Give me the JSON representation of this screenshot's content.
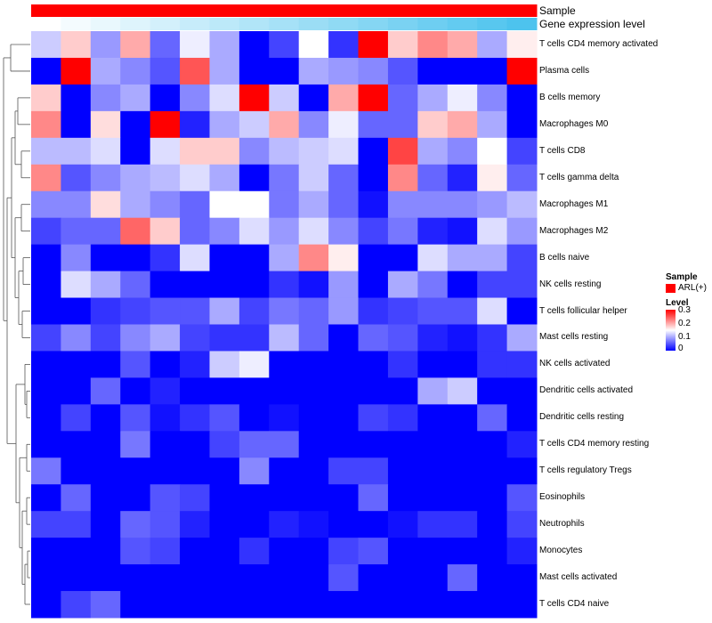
{
  "chart_data": {
    "type": "heatmap",
    "annotations": [
      {
        "name": "Sample",
        "colors": [
          "#ff0000"
        ]
      },
      {
        "name": "Gene expression level",
        "gradient": [
          "#ffffff",
          "#4dc3ee"
        ]
      }
    ],
    "rows": [
      "T cells CD4 memory activated",
      "Plasma cells",
      "B cells memory",
      "Macrophages M0",
      "T cells CD8",
      "T cells gamma delta",
      "Macrophages M1",
      "Macrophages M2",
      "B cells naive",
      "NK cells resting",
      "T cells follicular helper",
      "Mast cells resting",
      "NK cells activated",
      "Dendritic cells activated",
      "Dendritic cells resting",
      "T cells CD4 memory resting",
      "T cells regulatory  Tregs",
      "Eosinophils",
      "Neutrophils",
      "Monocytes",
      "Mast cells activated",
      "T cells CD4 naive"
    ],
    "values": [
      [
        0.12,
        0.18,
        0.09,
        0.2,
        0.06,
        0.14,
        0.1,
        0.0,
        0.04,
        0.15,
        0.03,
        0.3,
        0.18,
        0.22,
        0.2,
        0.1,
        0.16
      ],
      [
        0.0,
        0.3,
        0.1,
        0.08,
        0.05,
        0.25,
        0.1,
        0.0,
        0.0,
        0.1,
        0.09,
        0.08,
        0.05,
        0.0,
        0.0,
        0.0,
        0.3
      ],
      [
        0.18,
        0.0,
        0.08,
        0.1,
        0.0,
        0.08,
        0.13,
        0.3,
        0.12,
        0.0,
        0.2,
        0.3,
        0.06,
        0.1,
        0.14,
        0.08,
        0.0
      ],
      [
        0.22,
        0.0,
        0.17,
        0.0,
        0.3,
        0.02,
        0.1,
        0.12,
        0.2,
        0.08,
        0.14,
        0.06,
        0.06,
        0.18,
        0.2,
        0.1,
        0.0
      ],
      [
        0.11,
        0.11,
        0.13,
        0.0,
        0.13,
        0.18,
        0.18,
        0.08,
        0.11,
        0.12,
        0.13,
        0.0,
        0.26,
        0.1,
        0.08,
        0.15,
        0.04
      ],
      [
        0.22,
        0.05,
        0.08,
        0.1,
        0.11,
        0.13,
        0.1,
        0.0,
        0.07,
        0.12,
        0.06,
        0.0,
        0.22,
        0.06,
        0.02,
        0.16,
        0.06
      ],
      [
        0.08,
        0.08,
        0.17,
        0.1,
        0.08,
        0.06,
        0.15,
        0.15,
        0.07,
        0.1,
        0.06,
        0.01,
        0.08,
        0.08,
        0.08,
        0.09,
        0.11
      ],
      [
        0.04,
        0.06,
        0.06,
        0.24,
        0.18,
        0.06,
        0.08,
        0.13,
        0.09,
        0.13,
        0.08,
        0.04,
        0.07,
        0.02,
        0.01,
        0.13,
        0.09
      ],
      [
        0.0,
        0.08,
        0.0,
        0.0,
        0.03,
        0.13,
        0.0,
        0.0,
        0.1,
        0.22,
        0.16,
        0.0,
        0.0,
        0.13,
        0.1,
        0.1,
        0.04
      ],
      [
        0.0,
        0.13,
        0.1,
        0.06,
        0.0,
        0.0,
        0.0,
        0.0,
        0.03,
        0.01,
        0.09,
        0.0,
        0.1,
        0.07,
        0.0,
        0.04,
        0.04
      ],
      [
        0.0,
        0.0,
        0.03,
        0.04,
        0.05,
        0.05,
        0.1,
        0.04,
        0.07,
        0.06,
        0.09,
        0.03,
        0.04,
        0.05,
        0.05,
        0.13,
        0.0
      ],
      [
        0.04,
        0.08,
        0.04,
        0.08,
        0.1,
        0.04,
        0.03,
        0.03,
        0.11,
        0.06,
        0.0,
        0.06,
        0.05,
        0.02,
        0.01,
        0.03,
        0.1
      ],
      [
        0.0,
        0.0,
        0.0,
        0.05,
        0.0,
        0.02,
        0.12,
        0.14,
        0.0,
        0.0,
        0.0,
        0.0,
        0.03,
        0.0,
        0.0,
        0.03,
        0.03
      ],
      [
        0.0,
        0.0,
        0.06,
        0.0,
        0.02,
        0.0,
        0.0,
        0.0,
        0.0,
        0.0,
        0.0,
        0.0,
        0.0,
        0.1,
        0.12,
        0.0,
        0.0
      ],
      [
        0.0,
        0.04,
        0.0,
        0.05,
        0.01,
        0.03,
        0.05,
        0.0,
        0.01,
        0.0,
        0.0,
        0.04,
        0.03,
        0.0,
        0.0,
        0.06,
        0.0
      ],
      [
        0.0,
        0.0,
        0.0,
        0.07,
        0.0,
        0.0,
        0.04,
        0.06,
        0.06,
        0.0,
        0.0,
        0.0,
        0.0,
        0.0,
        0.0,
        0.0,
        0.02
      ],
      [
        0.07,
        0.0,
        0.0,
        0.0,
        0.0,
        0.0,
        0.0,
        0.08,
        0.0,
        0.0,
        0.04,
        0.04,
        0.0,
        0.0,
        0.0,
        0.0,
        0.0
      ],
      [
        0.0,
        0.06,
        0.0,
        0.0,
        0.05,
        0.04,
        0.0,
        0.0,
        0.0,
        0.0,
        0.0,
        0.06,
        0.0,
        0.0,
        0.0,
        0.0,
        0.05
      ],
      [
        0.04,
        0.04,
        0.0,
        0.06,
        0.05,
        0.02,
        0.0,
        0.0,
        0.02,
        0.01,
        0.0,
        0.0,
        0.01,
        0.03,
        0.03,
        0.0,
        0.04
      ],
      [
        0.0,
        0.0,
        0.0,
        0.05,
        0.04,
        0.0,
        0.0,
        0.03,
        0.0,
        0.0,
        0.04,
        0.05,
        0.0,
        0.0,
        0.0,
        0.0,
        0.02
      ],
      [
        0.0,
        0.0,
        0.0,
        0.0,
        0.0,
        0.0,
        0.0,
        0.0,
        0.0,
        0.0,
        0.05,
        0.0,
        0.0,
        0.0,
        0.06,
        0.0,
        0.0
      ],
      [
        0.0,
        0.04,
        0.06,
        0.0,
        0.0,
        0.0,
        0.0,
        0.0,
        0.0,
        0.0,
        0.0,
        0.0,
        0.0,
        0.0,
        0.0,
        0.0,
        0.0
      ]
    ],
    "color_scale": {
      "min": 0,
      "mid": 0.15,
      "max": 0.3,
      "low": "#0000ff",
      "midColor": "#ffffff",
      "high": "#ff0000"
    },
    "legend": {
      "sample_title": "Sample",
      "sample_item": "ARL(+)",
      "sample_color": "#ff0000",
      "level_title": "Level",
      "ticks": [
        "0.3",
        "0.2",
        "0.1",
        "0"
      ]
    },
    "dendrogram": true
  }
}
